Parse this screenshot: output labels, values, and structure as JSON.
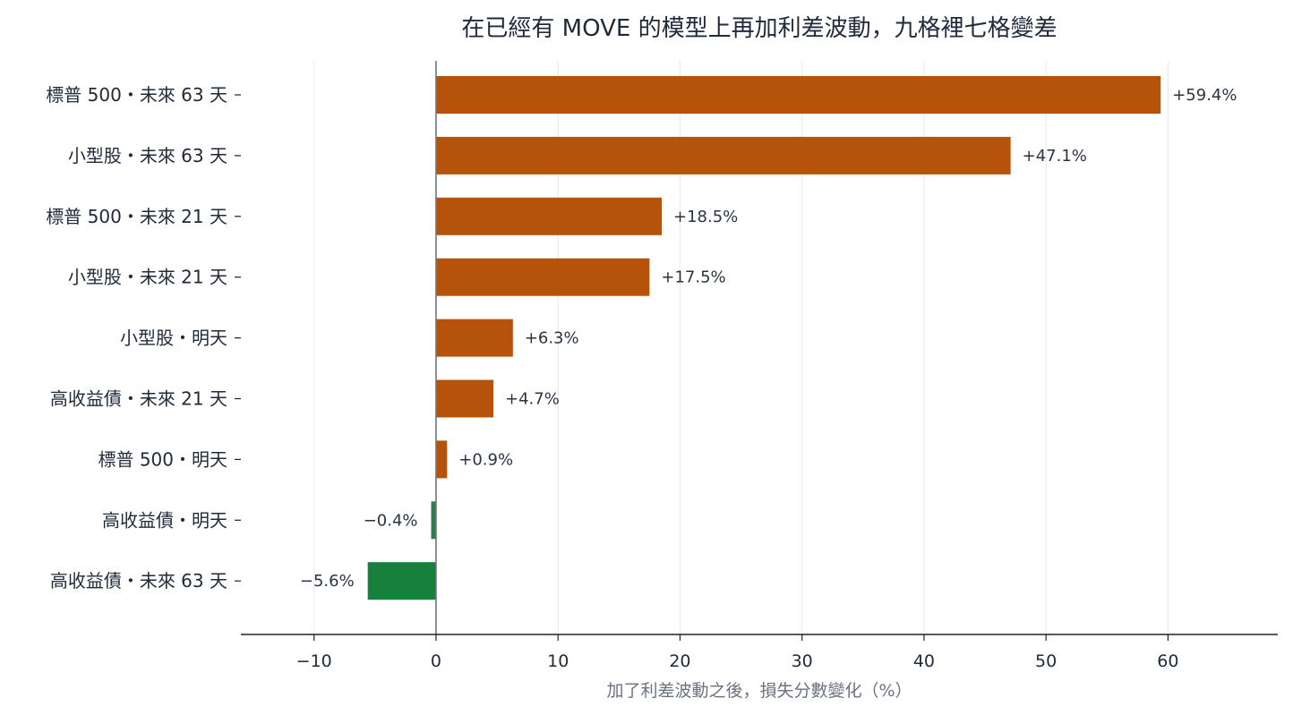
{
  "chart_data": {
    "type": "bar",
    "orientation": "horizontal",
    "title": "在已經有 MOVE 的模型上再加利差波動，九格裡七格變差",
    "xlabel": "加了利差波動之後，損失分數變化（%）",
    "ylabel": "",
    "xlim": [
      -16,
      69
    ],
    "xticks": [
      -10,
      0,
      10,
      20,
      30,
      40,
      50,
      60
    ],
    "xtick_labels": [
      "−10",
      "0",
      "10",
      "20",
      "30",
      "40",
      "50",
      "60"
    ],
    "grid": "vertical",
    "categories": [
      "標普 500・未來 63 天",
      "小型股・未來 63 天",
      "標普 500・未來 21 天",
      "小型股・未來 21 天",
      "小型股・明天",
      "高收益債・未來 21 天",
      "標普 500・明天",
      "高收益債・明天",
      "高收益債・未來 63 天"
    ],
    "values": [
      59.4,
      47.1,
      18.5,
      17.5,
      6.3,
      4.7,
      0.9,
      -0.4,
      -5.6
    ],
    "value_labels": [
      "+59.4%",
      "+47.1%",
      "+18.5%",
      "+17.5%",
      "+6.3%",
      "+4.7%",
      "+0.9%",
      "−0.4%",
      "−5.6%"
    ],
    "colors": {
      "positive": "#b5530b",
      "negative_small": "#2e7d4f",
      "negative": "#17803d",
      "zero_line": "#6b7588",
      "grid": "#e8e8e8",
      "axis": "#222222"
    }
  }
}
